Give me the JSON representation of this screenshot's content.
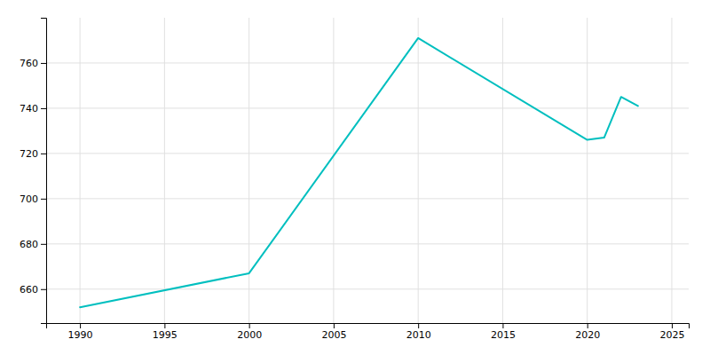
{
  "chart_data": {
    "type": "line",
    "x": [
      1990,
      2000,
      2010,
      2020,
      2021,
      2022,
      2023
    ],
    "values": [
      652,
      667,
      771,
      726,
      727,
      745,
      741
    ],
    "color": "#00BFBF",
    "xlim": [
      1988,
      2026
    ],
    "ylim": [
      645,
      780
    ],
    "xticks": [
      1990,
      1995,
      2000,
      2005,
      2010,
      2015,
      2020,
      2025
    ],
    "yticks": [
      660,
      680,
      700,
      720,
      740,
      760
    ],
    "grid": true
  }
}
